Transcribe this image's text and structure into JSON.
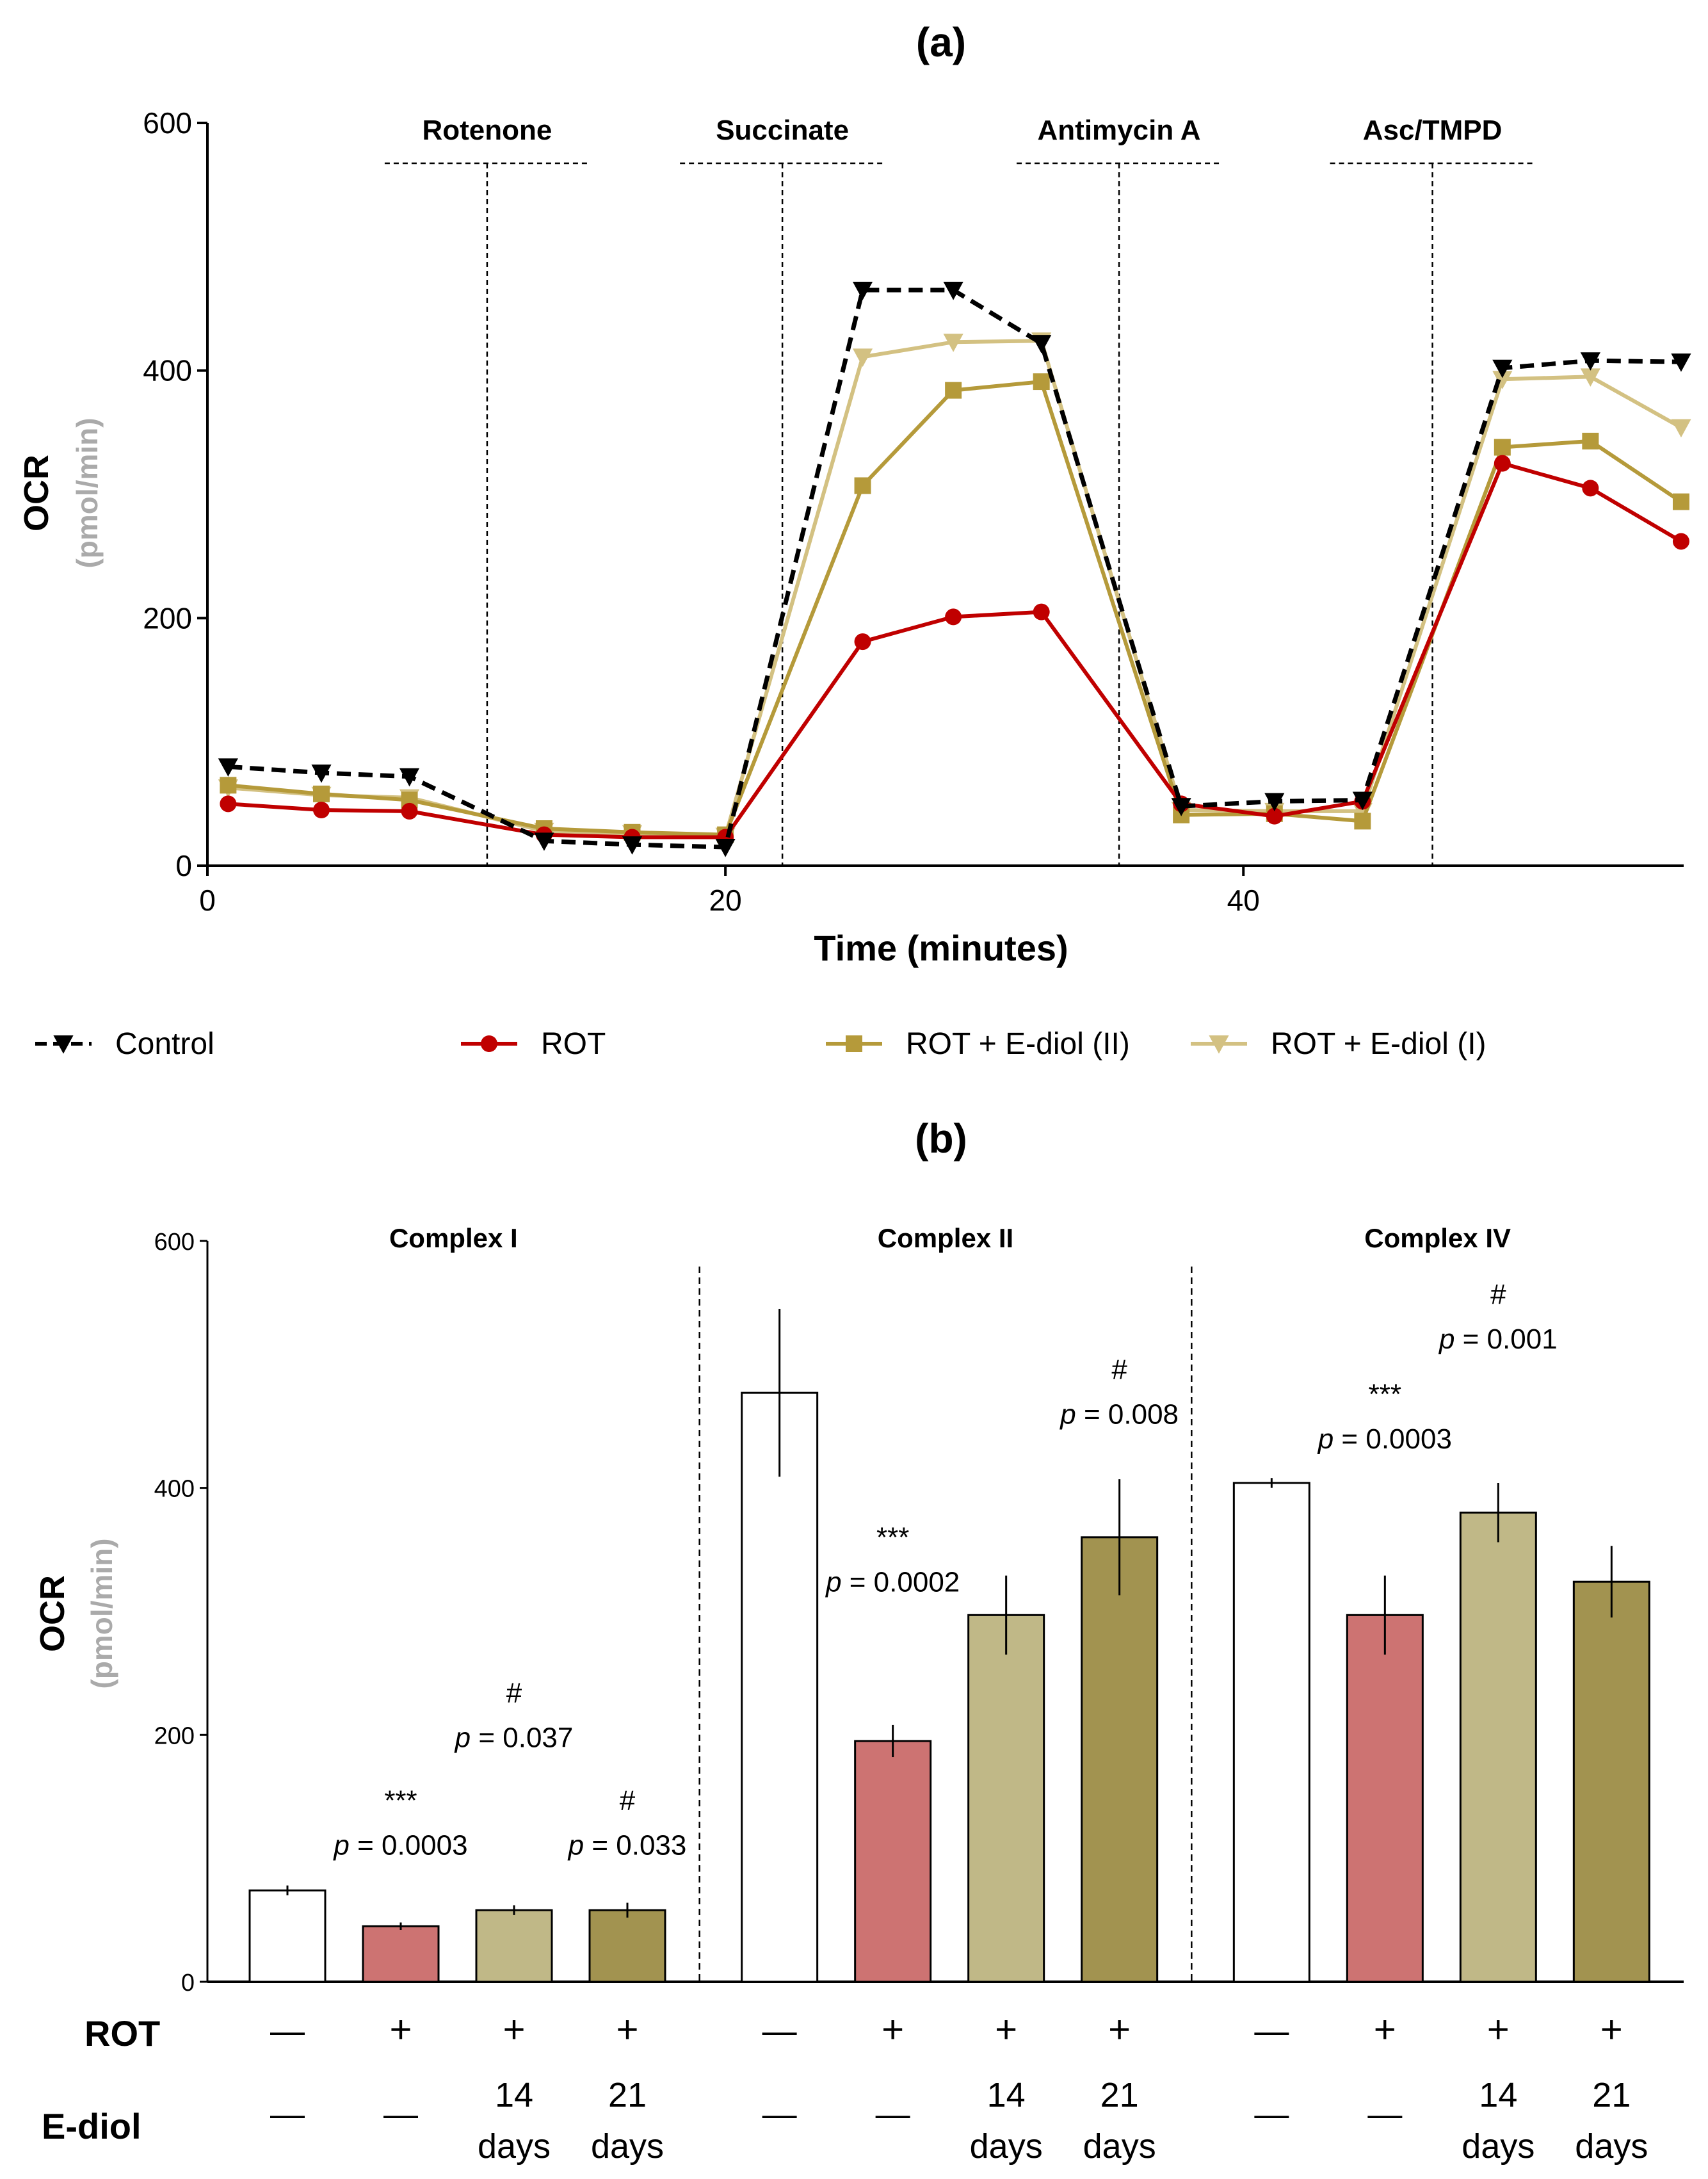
{
  "chart_data": [
    {
      "type": "line",
      "title": "(a)",
      "xlabel": "Time (minutes)",
      "ylabel": "OCR",
      "ylabel_unit": "(pmol/min)",
      "xlim": [
        0,
        57
      ],
      "ylim": [
        0,
        600
      ],
      "xticks": [
        0,
        20,
        40
      ],
      "yticks": [
        0,
        200,
        400,
        600
      ],
      "legend_position": "bottom",
      "injections": [
        {
          "label": "Rotenone",
          "time": 10.8
        },
        {
          "label": "Succinate",
          "time": 22.2
        },
        {
          "label": "Antimycin  A",
          "time": 35.2
        },
        {
          "label": "Asc/TMPD",
          "time": 47.3
        }
      ],
      "x": [
        0.8,
        4.4,
        7.8,
        13.0,
        16.4,
        20.0,
        25.3,
        28.8,
        32.2,
        37.6,
        41.2,
        44.6,
        50.0,
        53.4,
        56.9
      ],
      "series": [
        {
          "name": "Control",
          "color": "#000000",
          "marker": "triangle-down",
          "dashed": true,
          "values": [
            80,
            75,
            72,
            20,
            17,
            15,
            465,
            465,
            422,
            48,
            52,
            53,
            402,
            408,
            407
          ]
        },
        {
          "name": "ROT",
          "color": "#c00000",
          "marker": "circle",
          "dashed": false,
          "values": [
            50,
            45,
            44,
            25,
            23,
            23,
            181,
            201,
            205,
            50,
            40,
            52,
            325,
            305,
            262
          ]
        },
        {
          "name": "ROT + E-diol (II)",
          "color": "#b59a3a",
          "marker": "square",
          "dashed": false,
          "values": [
            65,
            58,
            53,
            30,
            27,
            25,
            307,
            384,
            391,
            41,
            42,
            36,
            338,
            343,
            294
          ]
        },
        {
          "name": "ROT + E-diol (I)",
          "color": "#d3c182",
          "marker": "triangle-down",
          "dashed": false,
          "values": [
            63,
            57,
            55,
            28,
            26,
            24,
            411,
            423,
            424,
            45,
            44,
            44,
            393,
            395,
            354
          ]
        }
      ]
    },
    {
      "type": "bar",
      "title": "(b)",
      "ylabel": "OCR",
      "ylabel_unit": "(pmol/min)",
      "ylim": [
        0,
        600
      ],
      "yticks": [
        0,
        200,
        400,
        600
      ],
      "bar_colors": [
        "#ffffff",
        "#cd7372",
        "#c0b887",
        "#a29350"
      ],
      "groups": [
        {
          "name": "Complex I",
          "values": [
            74,
            45,
            58,
            58
          ],
          "errors": [
            4,
            3,
            4,
            6
          ],
          "annotations": [
            {
              "bar": 1,
              "stars": "***",
              "p": "= 0.0003",
              "level": 103
            },
            {
              "bar": 2,
              "stars": "#",
              "p": "= 0.037",
              "level": 190
            },
            {
              "bar": 3,
              "stars": "#",
              "p": "= 0.033",
              "level": 103
            }
          ]
        },
        {
          "name": "Complex II",
          "values": [
            477,
            195,
            297,
            360
          ],
          "errors": [
            68,
            13,
            32,
            47
          ],
          "annotations": [
            {
              "bar": 1,
              "stars": "***",
              "p": "= 0.0002",
              "level": 316
            },
            {
              "bar": 3,
              "stars": "#",
              "p": "= 0.008",
              "level": 452
            }
          ]
        },
        {
          "name": "Complex IV",
          "values": [
            404,
            297,
            380,
            324
          ],
          "errors": [
            4,
            32,
            24,
            29
          ],
          "annotations": [
            {
              "bar": 1,
              "stars": "***",
              "p": "= 0.0003",
              "level": 432
            },
            {
              "bar": 2,
              "stars": "#",
              "p": "= 0.001",
              "level": 513
            }
          ]
        }
      ],
      "rows": [
        {
          "label": "ROT",
          "cells": [
            "—",
            "+",
            "+",
            "+"
          ]
        },
        {
          "label": "E-diol",
          "cells": [
            "—",
            "—",
            "14\ndays",
            "21\ndays"
          ]
        }
      ]
    }
  ]
}
